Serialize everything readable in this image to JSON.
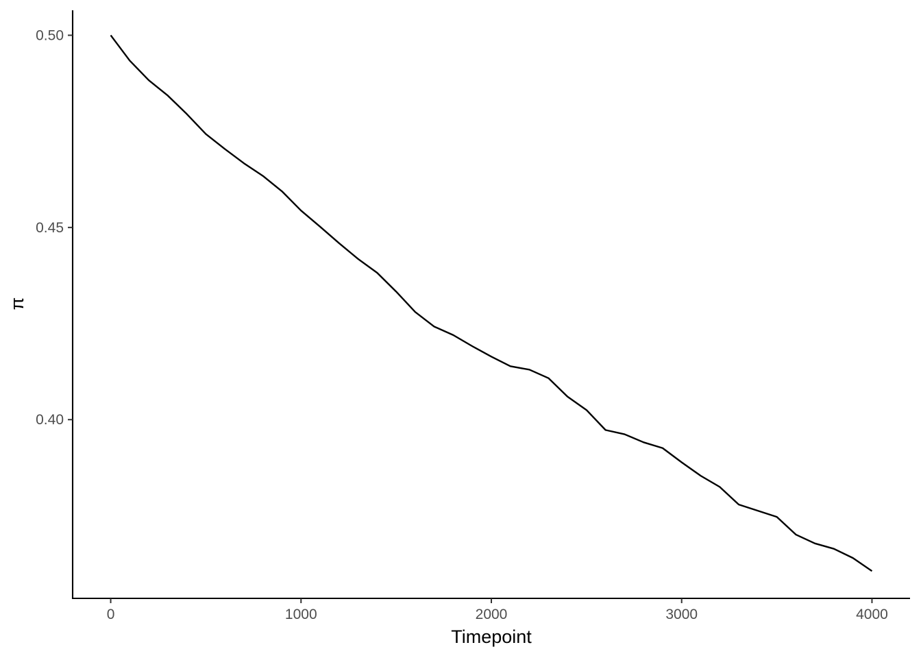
{
  "chart_data": {
    "type": "line",
    "title": "",
    "xlabel": "Timepoint",
    "ylabel": "π",
    "xlim": [
      -200,
      4200
    ],
    "ylim": [
      0.3535,
      0.5065
    ],
    "x_ticks": [
      0,
      1000,
      2000,
      3000,
      4000
    ],
    "x_tick_labels": [
      "0",
      "1000",
      "2000",
      "3000",
      "4000"
    ],
    "y_ticks": [
      0.4,
      0.45,
      0.5
    ],
    "y_tick_labels": [
      "0.40",
      "0.45",
      "0.50"
    ],
    "grid": false,
    "legend": "none",
    "series": [
      {
        "color": "#000000",
        "x": [
          0,
          100,
          200,
          300,
          400,
          500,
          600,
          700,
          800,
          900,
          1000,
          1100,
          1200,
          1300,
          1400,
          1500,
          1600,
          1700,
          1800,
          1900,
          2000,
          2100,
          2200,
          2300,
          2400,
          2500,
          2600,
          2700,
          2800,
          2900,
          3000,
          3100,
          3200,
          3300,
          3400,
          3500,
          3600,
          3700,
          3800,
          3900,
          4000
        ],
        "y": [
          0.5,
          0.4934,
          0.4883,
          0.4843,
          0.4795,
          0.4743,
          0.4704,
          0.4667,
          0.4634,
          0.4594,
          0.4544,
          0.4502,
          0.4459,
          0.4418,
          0.4382,
          0.4333,
          0.428,
          0.4242,
          0.422,
          0.4191,
          0.4164,
          0.4139,
          0.413,
          0.4108,
          0.406,
          0.4025,
          0.3973,
          0.3962,
          0.3941,
          0.3926,
          0.3889,
          0.3854,
          0.3825,
          0.3779,
          0.3763,
          0.3747,
          0.3701,
          0.3678,
          0.3664,
          0.364,
          0.3606
        ]
      }
    ]
  }
}
